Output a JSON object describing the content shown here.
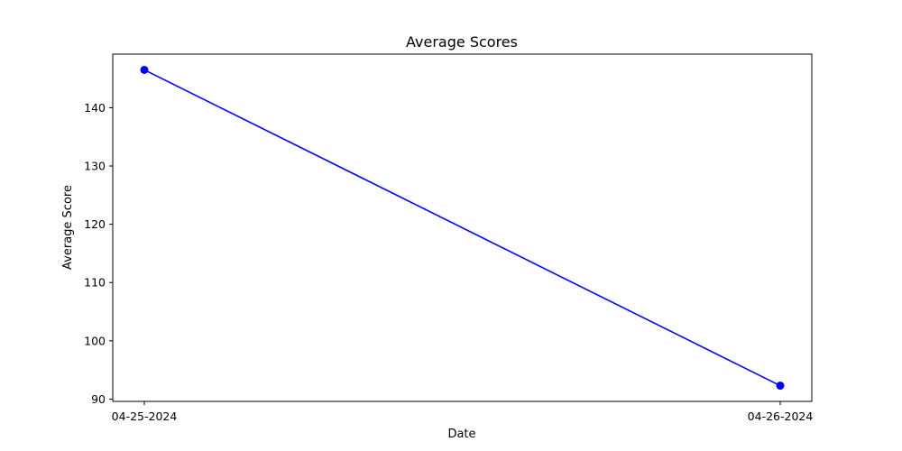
{
  "chart_data": {
    "type": "line",
    "title": "Average Scores",
    "xlabel": "Date",
    "ylabel": "Average Score",
    "categories": [
      "04-25-2024",
      "04-26-2024"
    ],
    "series": [
      {
        "values": [
          146.5,
          92.3
        ],
        "color": "#0000ff",
        "marker": "circle"
      }
    ],
    "yticks": [
      90,
      100,
      110,
      120,
      130,
      140
    ],
    "ylim": [
      89.6,
      149.2
    ],
    "grid": false,
    "legend": false
  }
}
